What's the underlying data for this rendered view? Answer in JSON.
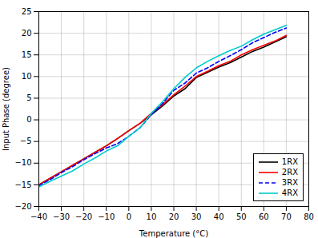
{
  "chart_data": {
    "type": "line",
    "xlabel": "Temperature (°C)",
    "ylabel": "Input Phase (degree)",
    "x": [
      -40,
      -35,
      -30,
      -25,
      -20,
      -15,
      -10,
      -5,
      0,
      5,
      10,
      15,
      20,
      25,
      30,
      35,
      40,
      45,
      50,
      55,
      60,
      65,
      70
    ],
    "series": [
      {
        "name": "1RX",
        "color": "#000000",
        "line_style": "solid",
        "values": [
          -15.0,
          -13.5,
          -12.0,
          -10.5,
          -9.0,
          -7.5,
          -6.0,
          -4.3,
          -2.5,
          -0.8,
          1.2,
          3.2,
          5.5,
          7.2,
          9.8,
          11.0,
          12.2,
          13.2,
          14.5,
          15.8,
          16.8,
          18.0,
          19.2
        ]
      },
      {
        "name": "2RX",
        "color": "#ff0000",
        "line_style": "solid",
        "values": [
          -15.0,
          -13.5,
          -12.0,
          -10.5,
          -9.0,
          -7.5,
          -6.0,
          -4.3,
          -2.5,
          -0.8,
          1.5,
          3.5,
          5.8,
          7.8,
          10.0,
          11.2,
          12.5,
          13.5,
          15.0,
          16.2,
          17.2,
          18.2,
          19.5
        ]
      },
      {
        "name": "3RX",
        "color": "#0000ff",
        "line_style": "dashed",
        "values": [
          -15.2,
          -13.8,
          -12.2,
          -10.8,
          -9.2,
          -7.8,
          -6.5,
          -5.5,
          -3.8,
          -1.8,
          1.2,
          3.8,
          6.8,
          8.5,
          10.8,
          12.0,
          13.5,
          14.8,
          16.2,
          17.8,
          19.0,
          20.2,
          21.2
        ]
      },
      {
        "name": "4RX",
        "color": "#00cccc",
        "line_style": "solid",
        "values": [
          -15.5,
          -14.2,
          -13.0,
          -11.8,
          -10.2,
          -8.8,
          -7.2,
          -6.0,
          -3.8,
          -1.8,
          1.5,
          4.2,
          7.2,
          9.8,
          12.0,
          13.5,
          14.8,
          16.0,
          17.0,
          18.5,
          19.8,
          20.8,
          21.8
        ]
      }
    ],
    "xlim": [
      -40,
      80
    ],
    "ylim": [
      -20,
      25
    ],
    "xticks": [
      -40,
      -30,
      -20,
      -10,
      0,
      10,
      20,
      30,
      40,
      50,
      60,
      70,
      80
    ],
    "yticks": [
      -20,
      -15,
      -10,
      -5,
      0,
      5,
      10,
      15,
      20,
      25
    ],
    "grid": true,
    "legend": "lower right"
  }
}
